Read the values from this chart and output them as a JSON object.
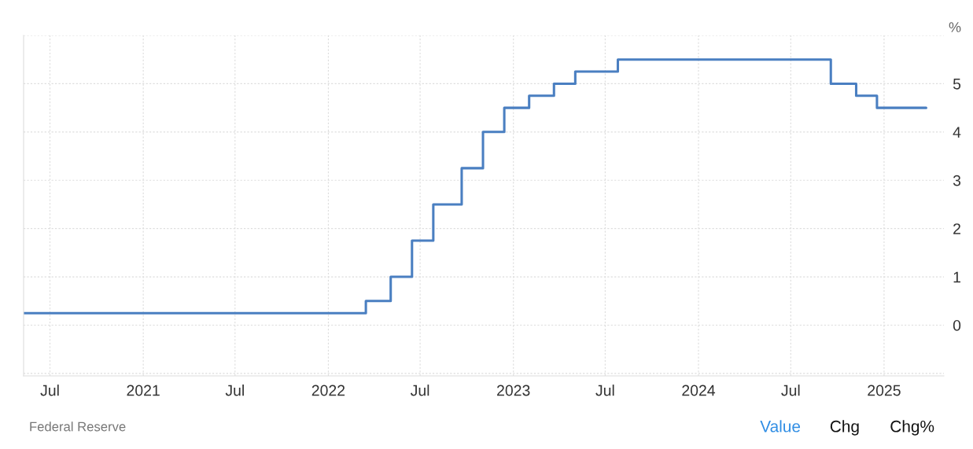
{
  "chart_data": {
    "type": "step",
    "ylabel": "%",
    "x": [
      "2020-05-10",
      "2022-03-16",
      "2022-05-04",
      "2022-06-15",
      "2022-07-27",
      "2022-09-21",
      "2022-11-02",
      "2022-12-14",
      "2023-02-01",
      "2023-03-22",
      "2023-05-03",
      "2023-07-26",
      "2024-09-18",
      "2024-11-07",
      "2024-12-18",
      "2025-03-25"
    ],
    "series": [
      {
        "color": "#4a7fc1",
        "values": [
          0.25,
          0.5,
          1.0,
          1.75,
          2.5,
          3.25,
          4.0,
          4.5,
          4.75,
          5.0,
          5.25,
          5.5,
          5.0,
          4.75,
          4.5,
          4.5
        ]
      }
    ],
    "xlim": [
      "2020-05-10",
      "2025-04-29"
    ],
    "xticks": [
      {
        "value": "2020-07-01",
        "label": "Jul"
      },
      {
        "value": "2021-01-01",
        "label": "2021"
      },
      {
        "value": "2021-07-01",
        "label": "Jul"
      },
      {
        "value": "2022-01-01",
        "label": "2022"
      },
      {
        "value": "2022-07-01",
        "label": "Jul"
      },
      {
        "value": "2023-01-01",
        "label": "2023"
      },
      {
        "value": "2023-07-01",
        "label": "Jul"
      },
      {
        "value": "2024-01-01",
        "label": "2024"
      },
      {
        "value": "2024-07-01",
        "label": "Jul"
      },
      {
        "value": "2025-01-01",
        "label": "2025"
      }
    ],
    "ylim": [
      -1.05,
      6
    ],
    "yticks": [
      {
        "value": -1,
        "label": null
      },
      0,
      1,
      2,
      3,
      4,
      5,
      {
        "value": 6,
        "label": null
      }
    ],
    "grid": true,
    "line_style": "solid",
    "marker": "none",
    "annotations": [
      "Federal Reserve",
      "Value",
      "Chg",
      "Chg%"
    ]
  }
}
